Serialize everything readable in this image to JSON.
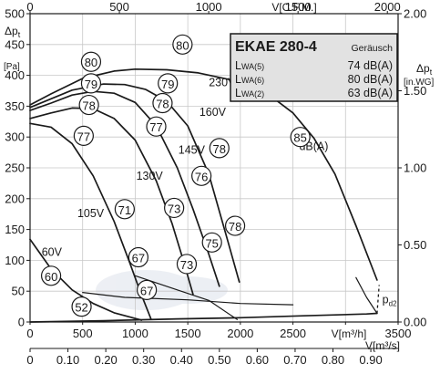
{
  "chart_data": {
    "type": "line",
    "axes": {
      "x_bottom": {
        "label": "V[m³/h]",
        "range": [
          0,
          3500
        ],
        "ticks": [
          0,
          500,
          1000,
          1500,
          2000,
          2500,
          3000,
          3500
        ]
      },
      "x_bottom2": {
        "label": "V[m³/s]",
        "range": [
          0,
          0.972
        ],
        "ticks": [
          "0",
          "0.10",
          "0.20",
          "0.30",
          "0.40",
          "0.50",
          "0.60",
          "0.70",
          "0.80",
          "0.90"
        ],
        "tick_values": [
          0,
          0.1,
          0.2,
          0.3,
          0.4,
          0.5,
          0.6,
          0.7,
          0.8,
          0.9
        ]
      },
      "x_top": {
        "label": "V[C.F.M.]",
        "range": [
          0,
          2060
        ],
        "ticks": [
          0,
          500,
          1000,
          1500,
          2000
        ],
        "tick_labels": [
          "0",
          "500",
          "1000",
          "1500",
          "2000"
        ]
      },
      "y_left": {
        "label": "Δpt",
        "unit": "[Pa]",
        "range": [
          0,
          500
        ],
        "ticks": [
          0,
          50,
          100,
          150,
          200,
          250,
          300,
          350,
          400,
          450,
          500
        ]
      },
      "y_right": {
        "label": "Δpt",
        "unit": "[in.WG]",
        "range": [
          0,
          2.0
        ],
        "ticks": [
          "0.00",
          "0.50",
          "1.00",
          "1.50",
          "2.00"
        ],
        "tick_values": [
          0,
          0.5,
          1.0,
          1.5,
          2.0
        ]
      }
    },
    "grid": true,
    "panel": {
      "title": "EKAE 280-4",
      "subtitle": "Geräusch",
      "rows": [
        {
          "label": "LWA(5)",
          "value": "74 dB(A)"
        },
        {
          "label": "LWA(6)",
          "value": "80 dB(A)"
        },
        {
          "label": "LWA(2)",
          "value": "63 dB(A)"
        }
      ]
    },
    "series": [
      {
        "name": "230V",
        "x": [
          0,
          200,
          500,
          800,
          1000,
          1300,
          1600,
          1900,
          2100,
          2300,
          2500,
          2700,
          2900,
          3100,
          3300
        ],
        "y": [
          352,
          370,
          395,
          407,
          410,
          409,
          404,
          393,
          381,
          365,
          339,
          298,
          240,
          156,
          68
        ]
      },
      {
        "name": "160V",
        "x": [
          0,
          200,
          400,
          700,
          900,
          1100,
          1300,
          1500,
          1700,
          1850,
          1990
        ],
        "y": [
          348,
          362,
          376,
          386,
          385,
          377,
          358,
          318,
          240,
          150,
          65
        ]
      },
      {
        "name": "145V",
        "x": [
          0,
          200,
          400,
          600,
          800,
          1000,
          1200,
          1400,
          1550,
          1700,
          1800
        ],
        "y": [
          343,
          355,
          368,
          374,
          371,
          356,
          318,
          250,
          183,
          110,
          58
        ]
      },
      {
        "name": "130V",
        "x": [
          0,
          200,
          400,
          600,
          800,
          1000,
          1200,
          1350,
          1450,
          1550
        ],
        "y": [
          330,
          339,
          347,
          346,
          330,
          295,
          229,
          160,
          104,
          45
        ]
      },
      {
        "name": "105V",
        "x": [
          0,
          200,
          400,
          600,
          800,
          950,
          1050,
          1150
        ],
        "y": [
          322,
          316,
          289,
          237,
          163,
          95,
          48,
          5
        ]
      },
      {
        "name": "60V",
        "x": [
          0,
          200,
          400,
          600,
          800,
          950,
          1060
        ],
        "y": [
          134,
          86,
          52,
          30,
          15,
          8,
          3
        ]
      },
      {
        "name": "pd2",
        "x": [
          0,
          700,
          1400,
          2000,
          2600,
          3200,
          3300
        ],
        "y": [
          0,
          2,
          5,
          7,
          10,
          13,
          14
        ]
      },
      {
        "name": "dB(A)",
        "x": [
          1970,
          1700,
          1400,
          1000
        ],
        "y": [
          4,
          35,
          52,
          75
        ]
      },
      {
        "name": "dB(A)",
        "x": [
          2500,
          2000,
          1500,
          900,
          500
        ],
        "y": [
          28,
          30,
          36,
          40,
          48
        ]
      },
      {
        "name": "dB(A)",
        "x": [
          3100,
          3200,
          3300
        ],
        "y": [
          72,
          40,
          14
        ]
      }
    ],
    "annotations": [
      {
        "text": "230V",
        "x": 1700,
        "y": 388
      },
      {
        "text": "160V",
        "x": 1610,
        "y": 340
      },
      {
        "text": "145V",
        "x": 1410,
        "y": 279
      },
      {
        "text": "130V",
        "x": 1010,
        "y": 237
      },
      {
        "text": "105V",
        "x": 450,
        "y": 176
      },
      {
        "text": "60V",
        "x": 110,
        "y": 113
      },
      {
        "text": "dB(A)",
        "x": 2560,
        "y": 285
      },
      {
        "text": "pd2",
        "x": 3350,
        "y": 36
      }
    ],
    "noise_labels": [
      {
        "text": "80",
        "x": 1450,
        "y": 450
      },
      {
        "text": "80",
        "x": 580,
        "y": 422
      },
      {
        "text": "79",
        "x": 580,
        "y": 387
      },
      {
        "text": "79",
        "x": 1310,
        "y": 387
      },
      {
        "text": "78",
        "x": 560,
        "y": 352
      },
      {
        "text": "78",
        "x": 1260,
        "y": 355
      },
      {
        "text": "77",
        "x": 510,
        "y": 302
      },
      {
        "text": "77",
        "x": 1200,
        "y": 317
      },
      {
        "text": "78",
        "x": 1800,
        "y": 282
      },
      {
        "text": "76",
        "x": 1630,
        "y": 237
      },
      {
        "text": "73",
        "x": 1370,
        "y": 185
      },
      {
        "text": "71",
        "x": 900,
        "y": 183
      },
      {
        "text": "78",
        "x": 1950,
        "y": 156
      },
      {
        "text": "75",
        "x": 1730,
        "y": 129
      },
      {
        "text": "73",
        "x": 1490,
        "y": 94
      },
      {
        "text": "67",
        "x": 1030,
        "y": 105
      },
      {
        "text": "67",
        "x": 1110,
        "y": 52
      },
      {
        "text": "60",
        "x": 200,
        "y": 75
      },
      {
        "text": "52",
        "x": 490,
        "y": 25
      },
      {
        "text": "85",
        "x": 2570,
        "y": 300
      }
    ]
  }
}
